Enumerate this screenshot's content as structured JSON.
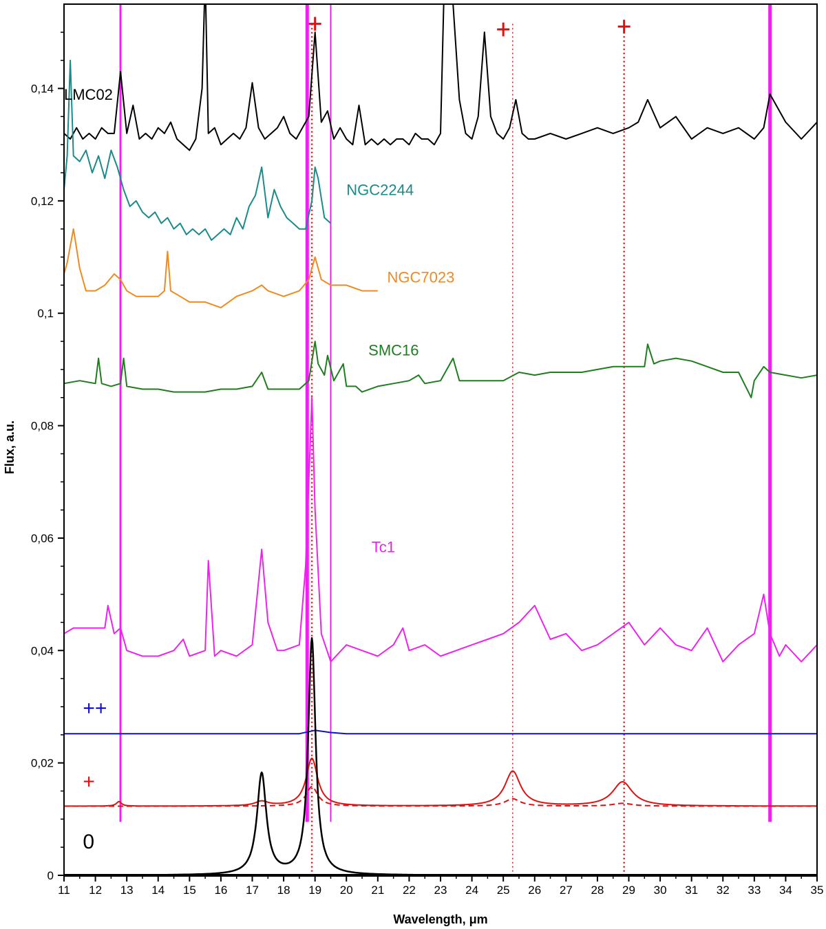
{
  "chart_data": {
    "type": "line",
    "xlabel": "Wavelength, μm",
    "ylabel": "Flux, a.u.",
    "xlim": [
      11,
      35
    ],
    "ylim": [
      0,
      0.155
    ],
    "x_ticks": [
      11,
      12,
      13,
      14,
      15,
      16,
      17,
      18,
      19,
      20,
      21,
      22,
      23,
      24,
      25,
      26,
      27,
      28,
      29,
      30,
      31,
      32,
      33,
      34,
      35
    ],
    "x_tick_labels": [
      "11",
      "12",
      "13",
      "14",
      "15",
      "16",
      "17",
      "18",
      "19",
      "20",
      "21",
      "22",
      "23",
      "24",
      "25",
      "26",
      "27",
      "28",
      "29",
      "30",
      "31",
      "32",
      "33",
      "34",
      "35"
    ],
    "y_ticks": [
      0,
      0.02,
      0.04,
      0.06,
      0.08,
      0.1,
      0.12,
      0.14
    ],
    "y_tick_labels": [
      "0",
      "0,02",
      "0,04",
      "0,06",
      "0,08",
      "0,1",
      "0,12",
      "0,14"
    ],
    "grid": false,
    "legend": "none",
    "series": [
      {
        "name": "LMC02",
        "color": "#000000",
        "label_at": [
          11.0,
          0.138
        ],
        "x": [
          11.0,
          11.2,
          11.4,
          11.6,
          11.8,
          12.0,
          12.2,
          12.4,
          12.6,
          12.8,
          13.0,
          13.2,
          13.4,
          13.6,
          13.8,
          14.0,
          14.2,
          14.4,
          14.6,
          14.8,
          15.0,
          15.2,
          15.4,
          15.5,
          15.6,
          15.8,
          16.0,
          16.2,
          16.4,
          16.6,
          16.8,
          17.0,
          17.2,
          17.4,
          17.6,
          17.8,
          18.0,
          18.2,
          18.4,
          18.6,
          18.8,
          19.0,
          19.2,
          19.4,
          19.6,
          19.8,
          20.0,
          20.2,
          20.4,
          20.6,
          20.8,
          21.0,
          21.2,
          21.4,
          21.6,
          21.8,
          22.0,
          22.2,
          22.4,
          22.6,
          22.8,
          23.0,
          23.1,
          23.2,
          23.4,
          23.6,
          23.8,
          24.0,
          24.2,
          24.4,
          24.6,
          24.8,
          25.0,
          25.2,
          25.4,
          25.6,
          25.8,
          26.0,
          26.5,
          27.0,
          27.5,
          28.0,
          28.5,
          29.0,
          29.3,
          29.6,
          30.0,
          30.5,
          31.0,
          31.5,
          32.0,
          32.5,
          33.0,
          33.3,
          33.5,
          34.0,
          34.5,
          35.0
        ],
        "y": [
          0.132,
          0.131,
          0.133,
          0.131,
          0.132,
          0.131,
          0.133,
          0.132,
          0.132,
          0.143,
          0.132,
          0.137,
          0.131,
          0.132,
          0.131,
          0.133,
          0.132,
          0.134,
          0.131,
          0.13,
          0.129,
          0.131,
          0.14,
          0.16,
          0.132,
          0.133,
          0.13,
          0.131,
          0.132,
          0.131,
          0.133,
          0.141,
          0.133,
          0.131,
          0.132,
          0.133,
          0.135,
          0.132,
          0.131,
          0.133,
          0.135,
          0.15,
          0.134,
          0.136,
          0.131,
          0.133,
          0.131,
          0.13,
          0.137,
          0.13,
          0.131,
          0.13,
          0.131,
          0.13,
          0.131,
          0.131,
          0.13,
          0.132,
          0.131,
          0.131,
          0.13,
          0.132,
          0.155,
          0.16,
          0.155,
          0.138,
          0.132,
          0.131,
          0.135,
          0.15,
          0.135,
          0.132,
          0.131,
          0.133,
          0.138,
          0.132,
          0.131,
          0.131,
          0.132,
          0.131,
          0.132,
          0.133,
          0.132,
          0.133,
          0.134,
          0.138,
          0.133,
          0.135,
          0.131,
          0.133,
          0.132,
          0.133,
          0.131,
          0.133,
          0.139,
          0.134,
          0.131,
          0.134
        ]
      },
      {
        "name": "NGC2244",
        "color": "#1a8a8a",
        "label_at": [
          20.0,
          0.121
        ],
        "x": [
          11.0,
          11.1,
          11.2,
          11.3,
          11.5,
          11.7,
          11.9,
          12.1,
          12.3,
          12.5,
          12.7,
          12.9,
          13.1,
          13.3,
          13.5,
          13.7,
          13.9,
          14.1,
          14.3,
          14.5,
          14.7,
          14.9,
          15.1,
          15.3,
          15.5,
          15.7,
          15.9,
          16.1,
          16.3,
          16.5,
          16.7,
          16.9,
          17.1,
          17.3,
          17.5,
          17.7,
          17.9,
          18.1,
          18.3,
          18.5,
          18.7,
          18.9,
          19.0,
          19.1,
          19.3,
          19.5
        ],
        "y": [
          0.122,
          0.128,
          0.145,
          0.128,
          0.127,
          0.129,
          0.125,
          0.128,
          0.124,
          0.129,
          0.126,
          0.122,
          0.119,
          0.12,
          0.118,
          0.117,
          0.118,
          0.116,
          0.117,
          0.115,
          0.116,
          0.114,
          0.115,
          0.114,
          0.115,
          0.113,
          0.114,
          0.115,
          0.114,
          0.117,
          0.115,
          0.119,
          0.121,
          0.126,
          0.117,
          0.122,
          0.119,
          0.117,
          0.116,
          0.115,
          0.115,
          0.12,
          0.126,
          0.124,
          0.117,
          0.116
        ]
      },
      {
        "name": "NGC7023",
        "color": "#f08a1e",
        "label_at": [
          21.3,
          0.1055
        ],
        "x": [
          11.0,
          11.1,
          11.3,
          11.5,
          11.7,
          12.0,
          12.3,
          12.6,
          12.8,
          13.0,
          13.3,
          13.6,
          14.0,
          14.2,
          14.3,
          14.4,
          14.7,
          15.0,
          15.5,
          16.0,
          16.5,
          17.0,
          17.3,
          17.5,
          18.0,
          18.5,
          18.8,
          19.0,
          19.2,
          19.5,
          20.0,
          20.5,
          21.0
        ],
        "y": [
          0.107,
          0.109,
          0.115,
          0.108,
          0.104,
          0.104,
          0.105,
          0.107,
          0.106,
          0.104,
          0.103,
          0.103,
          0.103,
          0.104,
          0.111,
          0.104,
          0.103,
          0.102,
          0.102,
          0.101,
          0.103,
          0.104,
          0.105,
          0.104,
          0.103,
          0.104,
          0.106,
          0.11,
          0.106,
          0.105,
          0.105,
          0.104,
          0.104
        ]
      },
      {
        "name": "SMC16",
        "color": "#1e7d1e",
        "label_at": [
          20.7,
          0.0925
        ],
        "x": [
          11.0,
          11.5,
          12.0,
          12.1,
          12.2,
          12.5,
          12.8,
          12.9,
          13.0,
          13.5,
          14.0,
          14.5,
          15.0,
          15.5,
          16.0,
          16.5,
          17.0,
          17.3,
          17.5,
          18.0,
          18.5,
          18.8,
          19.0,
          19.1,
          19.3,
          19.4,
          19.6,
          19.9,
          20.0,
          20.3,
          20.5,
          21.0,
          21.5,
          22.0,
          22.3,
          22.5,
          23.0,
          23.4,
          23.6,
          24.0,
          24.5,
          25.0,
          25.5,
          26.0,
          26.5,
          27.0,
          27.5,
          28.0,
          28.5,
          29.0,
          29.5,
          29.6,
          29.8,
          30.0,
          30.5,
          31.0,
          31.5,
          32.0,
          32.5,
          32.9,
          33.0,
          33.3,
          33.5,
          34.0,
          34.5,
          35.0
        ],
        "y": [
          0.0875,
          0.088,
          0.0875,
          0.092,
          0.0875,
          0.087,
          0.0875,
          0.092,
          0.087,
          0.0865,
          0.0865,
          0.086,
          0.086,
          0.086,
          0.0865,
          0.0865,
          0.087,
          0.0895,
          0.0865,
          0.0865,
          0.0865,
          0.088,
          0.095,
          0.091,
          0.089,
          0.0925,
          0.088,
          0.091,
          0.087,
          0.087,
          0.086,
          0.087,
          0.0875,
          0.088,
          0.089,
          0.0875,
          0.088,
          0.092,
          0.088,
          0.088,
          0.088,
          0.088,
          0.0895,
          0.089,
          0.0895,
          0.0895,
          0.0895,
          0.09,
          0.0905,
          0.0905,
          0.0905,
          0.0945,
          0.091,
          0.0915,
          0.092,
          0.0915,
          0.0905,
          0.0895,
          0.0895,
          0.085,
          0.088,
          0.0905,
          0.0895,
          0.089,
          0.0885,
          0.089
        ]
      },
      {
        "name": "Tc1",
        "color": "#ee22ee",
        "label_at": [
          20.8,
          0.0575
        ],
        "x": [
          11.0,
          11.3,
          11.6,
          12.0,
          12.3,
          12.4,
          12.6,
          12.8,
          13.0,
          13.5,
          14.0,
          14.5,
          14.8,
          15.0,
          15.5,
          15.6,
          15.8,
          16.0,
          16.5,
          17.0,
          17.3,
          17.5,
          17.8,
          18.0,
          18.5,
          18.7,
          18.8,
          18.9,
          19.0,
          19.2,
          19.5,
          20.0,
          20.5,
          21.0,
          21.5,
          21.8,
          22.0,
          22.5,
          23.0,
          23.5,
          24.0,
          24.5,
          25.0,
          25.5,
          26.0,
          26.5,
          27.0,
          27.5,
          28.0,
          28.5,
          29.0,
          29.5,
          30.0,
          30.5,
          31.0,
          31.5,
          32.0,
          32.5,
          33.0,
          33.3,
          33.5,
          33.8,
          34.0,
          34.5,
          35.0
        ],
        "y": [
          0.043,
          0.044,
          0.044,
          0.044,
          0.044,
          0.048,
          0.043,
          0.044,
          0.04,
          0.039,
          0.039,
          0.04,
          0.042,
          0.039,
          0.04,
          0.056,
          0.039,
          0.04,
          0.039,
          0.041,
          0.058,
          0.045,
          0.04,
          0.04,
          0.041,
          0.055,
          0.07,
          0.085,
          0.065,
          0.043,
          0.038,
          0.041,
          0.04,
          0.039,
          0.041,
          0.044,
          0.04,
          0.041,
          0.039,
          0.04,
          0.041,
          0.042,
          0.043,
          0.045,
          0.048,
          0.042,
          0.043,
          0.04,
          0.041,
          0.043,
          0.045,
          0.041,
          0.044,
          0.041,
          0.04,
          0.044,
          0.038,
          0.041,
          0.043,
          0.05,
          0.043,
          0.039,
          0.041,
          0.038,
          0.041
        ]
      },
      {
        "name": "++",
        "color": "#1010cc",
        "label_at": [
          11.6,
          0.0285
        ],
        "x": [
          11,
          18.5,
          19.0,
          19.5,
          20,
          35
        ],
        "y": [
          0.0252,
          0.0252,
          0.0258,
          0.0254,
          0.0252,
          0.0252
        ]
      },
      {
        "name": "+",
        "color": "#e01010",
        "label_at": [
          11.6,
          0.0155
        ],
        "peaks": [
          [
            12.75,
            0.0008,
            0.1
          ],
          [
            17.3,
            0.0008,
            0.25
          ],
          [
            18.9,
            0.0085,
            0.22
          ],
          [
            25.3,
            0.0062,
            0.3
          ],
          [
            28.8,
            0.0043,
            0.38
          ]
        ],
        "baseline": 0.0123
      },
      {
        "name": "+ (dashed)",
        "color": "#e01010",
        "dashed": true,
        "peaks": [
          [
            18.9,
            0.0035,
            0.22
          ],
          [
            25.3,
            0.0013,
            0.3
          ],
          [
            28.8,
            0.0005,
            0.38
          ]
        ],
        "baseline": 0.0123
      },
      {
        "name": "0",
        "color": "#000000",
        "label_at": [
          11.6,
          0.0048
        ],
        "peaks": [
          [
            17.3,
            0.018,
            0.18
          ],
          [
            18.9,
            0.042,
            0.14
          ]
        ],
        "baseline": 0.0
      }
    ],
    "vertical_lines": [
      {
        "x": 12.8,
        "color": "#ee22ee",
        "width": 3
      },
      {
        "x": 18.75,
        "color": "#ee22ee",
        "width": 5
      },
      {
        "x": 19.5,
        "color": "#ee22ee",
        "width": 2
      },
      {
        "x": 33.5,
        "color": "#ee22ee",
        "width": 5
      }
    ],
    "dotted_lines": [
      {
        "x": 18.9,
        "color": "#e01010",
        "width": 2.5
      },
      {
        "x": 25.3,
        "color": "#e01010",
        "width": 1.5
      },
      {
        "x": 28.85,
        "color": "#e01010",
        "width": 2.5
      }
    ],
    "plus_markers": [
      {
        "x": 19.0,
        "y": 0.1515,
        "color": "#e01010"
      },
      {
        "x": 25.0,
        "y": 0.1505,
        "color": "#e01010"
      },
      {
        "x": 28.85,
        "y": 0.151,
        "color": "#e01010"
      }
    ]
  }
}
